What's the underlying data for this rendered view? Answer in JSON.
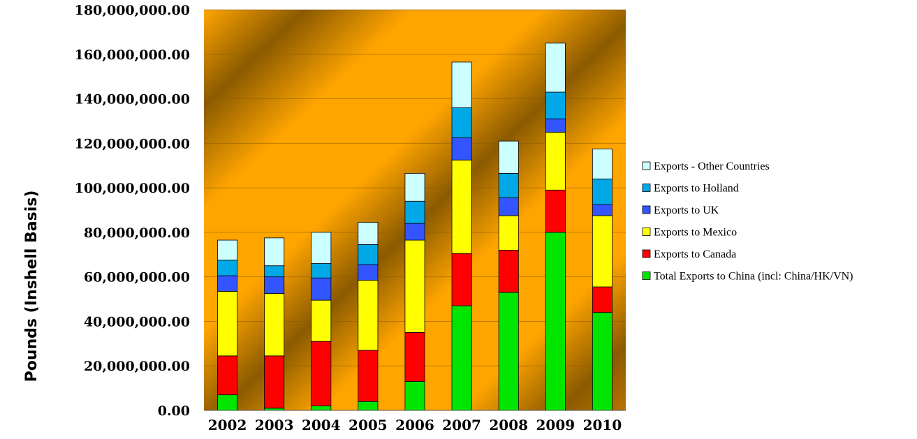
{
  "chart_data": {
    "type": "bar",
    "stacked": true,
    "title": "",
    "xlabel": "",
    "ylabel": "Pounds (Inshell Basis)",
    "ylim": [
      0,
      180000000
    ],
    "yticks": [
      0,
      20000000,
      40000000,
      60000000,
      80000000,
      100000000,
      120000000,
      140000000,
      160000000,
      180000000
    ],
    "ytick_labels": [
      "0.00",
      "20,000,000.00",
      "40,000,000.00",
      "60,000,000.00",
      "80,000,000.00",
      "100,000,000.00",
      "120,000,000.00",
      "140,000,000.00",
      "160,000,000.00",
      "180,000,000.00"
    ],
    "grid": true,
    "legend_position": "right",
    "categories": [
      "2002",
      "2003",
      "2004",
      "2005",
      "2006",
      "2007",
      "2008",
      "2009",
      "2010"
    ],
    "series": [
      {
        "name": "Total Exports to China (incl: China/HK/VN)",
        "color": "#00e600",
        "values": [
          7000000,
          1000000,
          2000000,
          4000000,
          13000000,
          47000000,
          53000000,
          80000000,
          44000000
        ]
      },
      {
        "name": "Exports to Canada",
        "color": "#ff0000",
        "values": [
          17500000,
          23500000,
          29000000,
          23000000,
          22000000,
          23500000,
          19000000,
          19000000,
          11500000
        ]
      },
      {
        "name": "Exports to Mexico",
        "color": "#ffff00",
        "values": [
          29000000,
          28000000,
          18500000,
          31500000,
          41500000,
          42000000,
          15500000,
          26000000,
          32000000
        ]
      },
      {
        "name": "Exports to UK",
        "color": "#3355ff",
        "values": [
          7000000,
          7500000,
          10000000,
          7000000,
          7500000,
          10000000,
          8000000,
          6000000,
          5000000
        ]
      },
      {
        "name": "Exports to Holland",
        "color": "#00a8e8",
        "values": [
          7000000,
          5000000,
          6500000,
          9000000,
          10000000,
          13500000,
          11000000,
          12000000,
          11500000
        ]
      },
      {
        "name": "Exports - Other Countries",
        "color": "#ccffff",
        "values": [
          9000000,
          12500000,
          14000000,
          10000000,
          12500000,
          20500000,
          14500000,
          22000000,
          13500000
        ]
      }
    ]
  }
}
